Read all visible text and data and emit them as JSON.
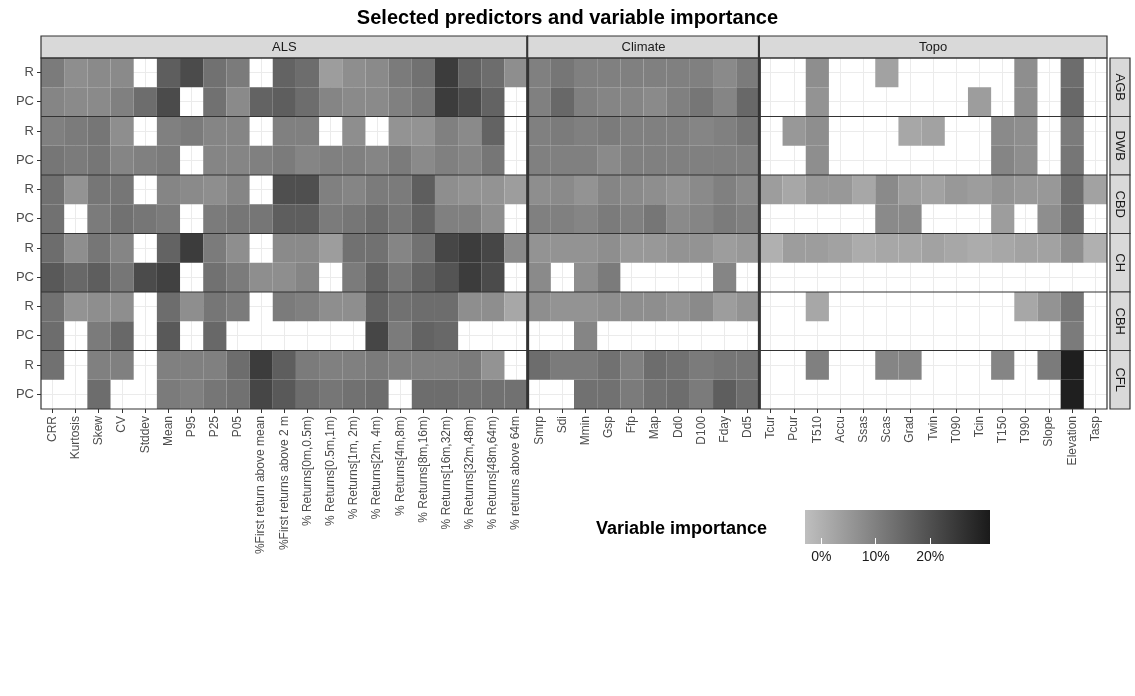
{
  "chart_data": {
    "type": "heatmap",
    "title": "Selected predictors and variable importance",
    "grid": true,
    "clabel": "Variable importance",
    "categories": [
      "CRR",
      "Kurtosis",
      "Skew",
      "CV",
      "Stddev",
      "Mean",
      "P95",
      "P25",
      "P05",
      "%First return above mean",
      "%First returns above 2 m",
      "% Returns[0m,0.5m)",
      "% Returns[0.5m,1m)",
      "% Returns[1m, 2m)",
      "% Returns[2m, 4m)",
      "% Returns[4m,8m)",
      "% Returns[8m,16m)",
      "% Returns[16m,32m)",
      "% Returns[32m,48m)",
      "% Returns[48m,64m)",
      "% returns above 64m",
      "Smrp",
      "Sdi",
      "Mmin",
      "Gsp",
      "Ffp",
      "Map",
      "Dd0",
      "D100",
      "Fday",
      "Dd5",
      "Tcur",
      "Pcur",
      "T510",
      "Accu",
      "Ssas",
      "Scas",
      "Grad",
      "Twin",
      "T090",
      "Tcin",
      "T150",
      "T990",
      "Slope",
      "Elevation",
      "Tasp"
    ],
    "y_categories": [
      "R",
      "PC",
      "R",
      "PC",
      "R",
      "PC",
      "R",
      "PC",
      "R",
      "PC",
      "R",
      "PC"
    ],
    "y2_categories": [
      "AGB",
      null,
      "DWB",
      null,
      "CBD",
      null,
      "CH",
      null,
      "CBH",
      null,
      "CFL",
      null
    ],
    "annotations": [
      "ALS",
      "Climate",
      "Topo"
    ],
    "cells": [
      [
        11,
        7,
        8,
        8,
        null,
        17,
        21,
        13,
        11,
        null,
        16,
        14,
        4,
        7,
        8,
        11,
        13,
        24,
        16,
        14,
        7,
        10,
        12,
        10,
        10,
        10,
        10,
        10,
        10,
        8,
        11,
        null,
        null,
        7,
        null,
        null,
        3,
        null,
        null,
        null,
        null,
        null,
        7,
        null,
        14,
        null
      ],
      [
        9,
        8,
        8,
        10,
        14,
        21,
        null,
        13,
        8,
        16,
        17,
        14,
        9,
        8,
        8,
        10,
        12,
        24,
        21,
        16,
        null,
        10,
        15,
        10,
        9,
        9,
        8,
        10,
        12,
        9,
        15,
        null,
        null,
        6,
        null,
        null,
        null,
        null,
        null,
        null,
        4,
        null,
        7,
        null,
        15,
        null
      ],
      [
        10,
        11,
        12,
        7,
        null,
        10,
        11,
        9,
        9,
        null,
        10,
        10,
        null,
        7,
        null,
        6,
        6,
        10,
        8,
        16,
        null,
        10,
        11,
        10,
        11,
        10,
        10,
        10,
        9,
        10,
        12,
        null,
        5,
        7,
        null,
        null,
        null,
        2,
        3,
        null,
        null,
        8,
        7,
        null,
        11,
        null
      ],
      [
        12,
        11,
        12,
        9,
        10,
        11,
        null,
        9,
        9,
        10,
        11,
        9,
        10,
        10,
        9,
        11,
        8,
        10,
        9,
        12,
        null,
        10,
        10,
        10,
        8,
        10,
        10,
        10,
        10,
        10,
        10,
        null,
        null,
        7,
        null,
        null,
        null,
        null,
        null,
        null,
        null,
        9,
        7,
        null,
        12,
        null
      ],
      [
        13,
        6,
        12,
        12,
        null,
        9,
        8,
        7,
        9,
        null,
        20,
        20,
        10,
        9,
        11,
        11,
        17,
        7,
        6,
        6,
        4,
        7,
        8,
        6,
        9,
        8,
        7,
        6,
        8,
        10,
        8,
        4,
        2,
        5,
        5,
        2,
        8,
        4,
        3,
        5,
        4,
        6,
        5,
        5,
        14,
        3
      ],
      [
        13,
        null,
        11,
        13,
        12,
        11,
        null,
        11,
        12,
        12,
        17,
        17,
        11,
        12,
        14,
        12,
        16,
        10,
        10,
        7,
        null,
        10,
        10,
        9,
        11,
        10,
        12,
        8,
        9,
        11,
        10,
        null,
        null,
        null,
        null,
        null,
        8,
        8,
        null,
        null,
        null,
        4,
        null,
        7,
        14,
        null
      ],
      [
        14,
        7,
        12,
        9,
        null,
        16,
        24,
        11,
        7,
        null,
        8,
        8,
        4,
        13,
        13,
        9,
        13,
        22,
        24,
        22,
        8,
        6,
        6,
        6,
        7,
        5,
        5,
        6,
        6,
        4,
        5,
        0,
        4,
        4,
        3,
        1,
        2,
        2,
        3,
        2,
        1,
        2,
        3,
        3,
        7,
        0
      ],
      [
        18,
        15,
        17,
        12,
        21,
        23,
        null,
        13,
        11,
        7,
        7,
        9,
        null,
        11,
        16,
        12,
        16,
        19,
        24,
        21,
        null,
        8,
        null,
        7,
        11,
        null,
        null,
        null,
        null,
        9,
        null,
        null,
        null,
        null,
        null,
        null,
        null,
        null,
        null,
        null,
        null,
        null,
        null,
        null,
        null,
        null
      ],
      [
        13,
        6,
        7,
        7,
        null,
        14,
        7,
        12,
        11,
        null,
        11,
        10,
        7,
        7,
        16,
        13,
        14,
        14,
        7,
        7,
        2,
        7,
        6,
        6,
        7,
        7,
        7,
        6,
        8,
        4,
        6,
        null,
        null,
        2,
        null,
        null,
        null,
        null,
        null,
        null,
        null,
        null,
        2,
        6,
        12,
        null
      ],
      [
        14,
        null,
        11,
        15,
        null,
        18,
        null,
        15,
        null,
        null,
        null,
        null,
        null,
        null,
        22,
        11,
        16,
        15,
        null,
        null,
        null,
        null,
        null,
        9,
        null,
        null,
        null,
        null,
        null,
        null,
        null,
        null,
        null,
        null,
        null,
        null,
        null,
        null,
        null,
        null,
        null,
        null,
        null,
        null,
        11,
        null
      ],
      [
        13,
        null,
        10,
        10,
        null,
        10,
        10,
        10,
        14,
        24,
        17,
        11,
        10,
        10,
        11,
        10,
        10,
        10,
        11,
        6,
        null,
        14,
        11,
        11,
        13,
        10,
        14,
        13,
        11,
        12,
        12,
        null,
        null,
        10,
        null,
        null,
        9,
        9,
        null,
        null,
        null,
        9,
        null,
        11,
        30,
        null
      ],
      [
        null,
        null,
        14,
        null,
        null,
        11,
        10,
        12,
        13,
        22,
        18,
        14,
        12,
        13,
        14,
        null,
        14,
        14,
        13,
        13,
        13,
        null,
        null,
        13,
        13,
        11,
        13,
        14,
        11,
        17,
        14,
        null,
        null,
        null,
        null,
        null,
        null,
        null,
        null,
        null,
        null,
        null,
        null,
        null,
        30,
        null
      ]
    ],
    "clim": [
      -3,
      31
    ],
    "cticks": [
      {
        "value": 0,
        "label": "0%"
      },
      {
        "value": 10,
        "label": "10%"
      },
      {
        "value": 20,
        "label": "20%"
      }
    ]
  }
}
